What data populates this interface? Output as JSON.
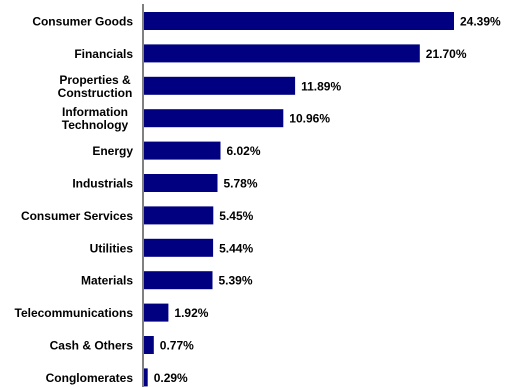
{
  "chart_data": {
    "type": "bar",
    "orientation": "horizontal",
    "categories": [
      [
        "Consumer Goods"
      ],
      [
        "Financials"
      ],
      [
        "Properties &",
        "Construction"
      ],
      [
        "Information",
        "Technology"
      ],
      [
        "Energy"
      ],
      [
        "Industrials"
      ],
      [
        "Consumer Services"
      ],
      [
        "Utilities"
      ],
      [
        "Materials"
      ],
      [
        "Telecommunications"
      ],
      [
        "Cash & Others"
      ],
      [
        "Conglomerates"
      ]
    ],
    "values": [
      24.39,
      21.7,
      11.89,
      10.96,
      6.02,
      5.78,
      5.45,
      5.44,
      5.39,
      1.92,
      0.77,
      0.29
    ],
    "value_labels": [
      "24.39%",
      "21.70%",
      "11.89%",
      "10.96%",
      "6.02%",
      "5.78%",
      "5.45%",
      "5.44%",
      "5.39%",
      "1.92%",
      "0.77%",
      "0.29%"
    ],
    "bar_color": "#000080",
    "grid": false,
    "legend": "none",
    "title": "",
    "xlabel": "",
    "ylabel": ""
  }
}
